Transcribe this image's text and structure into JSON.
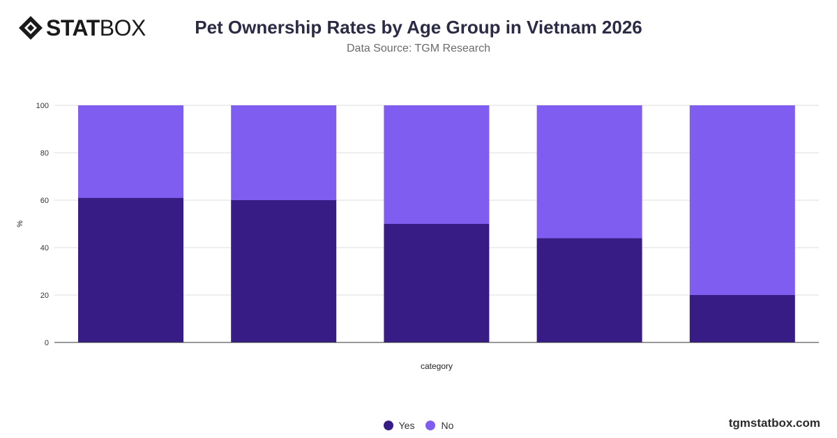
{
  "brand": {
    "logo_bold": "STAT",
    "logo_light": "BOX",
    "site": "tgmstatbox.com"
  },
  "header": {
    "title": "Pet Ownership Rates by Age Group in Vietnam 2026",
    "subtitle": "Data Source: TGM Research"
  },
  "colors": {
    "yes": "#371c85",
    "no": "#7e5df0",
    "grid": "#dddddd",
    "axis": "#333333"
  },
  "chart_data": {
    "type": "bar",
    "stacked": true,
    "categories": [
      "",
      "",
      "",
      "",
      ""
    ],
    "series": [
      {
        "name": "Yes",
        "values": [
          61,
          60,
          50,
          44,
          20
        ]
      },
      {
        "name": "No",
        "values": [
          39,
          40,
          50,
          56,
          80
        ]
      }
    ],
    "xlabel": "category",
    "ylabel": "%",
    "ylim": [
      0,
      100
    ],
    "yticks": [
      0,
      20,
      40,
      60,
      80,
      100
    ],
    "grid": true,
    "legend": "bottom"
  }
}
